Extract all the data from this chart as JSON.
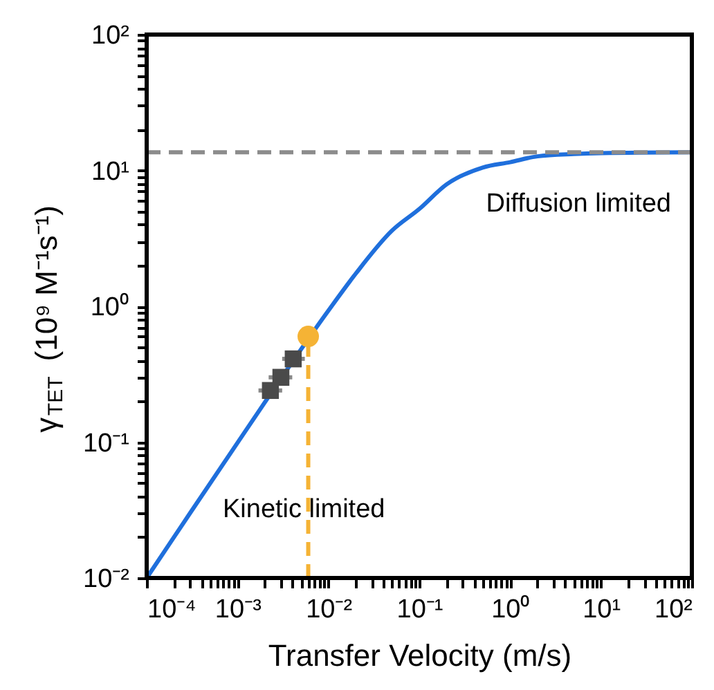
{
  "chart_data": {
    "type": "line",
    "xlabel": "Transfer Velocity (m/s)",
    "ylabel": "γ$_{TET}$ (10⁹ M⁻¹s⁻¹)",
    "log": "xy",
    "grid": false,
    "xlim": [
      0.0001,
      100
    ],
    "ylim": [
      0.01,
      100
    ],
    "xticks": [
      {
        "value": 0.0001,
        "label": "10⁻⁴"
      },
      {
        "value": 0.0002,
        "label": null
      },
      {
        "value": 0.0003,
        "label": null
      },
      {
        "value": 0.0004,
        "label": null
      },
      {
        "value": 0.0005,
        "label": null
      },
      {
        "value": 0.0006,
        "label": null
      },
      {
        "value": 0.0007,
        "label": null
      },
      {
        "value": 0.0008,
        "label": null
      },
      {
        "value": 0.0009,
        "label": null
      },
      {
        "value": 0.001,
        "label": "10⁻³"
      },
      {
        "value": 0.002,
        "label": null
      },
      {
        "value": 0.003,
        "label": null
      },
      {
        "value": 0.004,
        "label": null
      },
      {
        "value": 0.005,
        "label": null
      },
      {
        "value": 0.006,
        "label": null
      },
      {
        "value": 0.007,
        "label": null
      },
      {
        "value": 0.008,
        "label": null
      },
      {
        "value": 0.009,
        "label": null
      },
      {
        "value": 0.01,
        "label": "10⁻²"
      },
      {
        "value": 0.02,
        "label": null
      },
      {
        "value": 0.03,
        "label": null
      },
      {
        "value": 0.04,
        "label": null
      },
      {
        "value": 0.05,
        "label": null
      },
      {
        "value": 0.06,
        "label": null
      },
      {
        "value": 0.07,
        "label": null
      },
      {
        "value": 0.08,
        "label": null
      },
      {
        "value": 0.09,
        "label": null
      },
      {
        "value": 0.1,
        "label": "10⁻¹"
      },
      {
        "value": 0.2,
        "label": null
      },
      {
        "value": 0.3,
        "label": null
      },
      {
        "value": 0.4,
        "label": null
      },
      {
        "value": 0.5,
        "label": null
      },
      {
        "value": 0.6,
        "label": null
      },
      {
        "value": 0.7,
        "label": null
      },
      {
        "value": 0.8,
        "label": null
      },
      {
        "value": 0.9,
        "label": null
      },
      {
        "value": 1,
        "label": "10⁰"
      },
      {
        "value": 2,
        "label": null
      },
      {
        "value": 3,
        "label": null
      },
      {
        "value": 4,
        "label": null
      },
      {
        "value": 5,
        "label": null
      },
      {
        "value": 6,
        "label": null
      },
      {
        "value": 7,
        "label": null
      },
      {
        "value": 8,
        "label": null
      },
      {
        "value": 9,
        "label": null
      },
      {
        "value": 10,
        "label": "10¹"
      },
      {
        "value": 20,
        "label": null
      },
      {
        "value": 30,
        "label": null
      },
      {
        "value": 40,
        "label": null
      },
      {
        "value": 50,
        "label": null
      },
      {
        "value": 60,
        "label": null
      },
      {
        "value": 70,
        "label": null
      },
      {
        "value": 80,
        "label": null
      },
      {
        "value": 90,
        "label": null
      },
      {
        "value": 100,
        "label": "10²"
      }
    ],
    "yticks": [
      {
        "value": 0.01,
        "label": "10⁻²"
      },
      {
        "value": 0.02,
        "label": null
      },
      {
        "value": 0.03,
        "label": null
      },
      {
        "value": 0.04,
        "label": null
      },
      {
        "value": 0.05,
        "label": null
      },
      {
        "value": 0.06,
        "label": null
      },
      {
        "value": 0.07,
        "label": null
      },
      {
        "value": 0.08,
        "label": null
      },
      {
        "value": 0.09,
        "label": null
      },
      {
        "value": 0.1,
        "label": "10⁻¹"
      },
      {
        "value": 0.2,
        "label": null
      },
      {
        "value": 0.3,
        "label": null
      },
      {
        "value": 0.4,
        "label": null
      },
      {
        "value": 0.5,
        "label": null
      },
      {
        "value": 0.6,
        "label": null
      },
      {
        "value": 0.7,
        "label": null
      },
      {
        "value": 0.8,
        "label": null
      },
      {
        "value": 0.9,
        "label": null
      },
      {
        "value": 1,
        "label": "10⁰"
      },
      {
        "value": 2,
        "label": null
      },
      {
        "value": 3,
        "label": null
      },
      {
        "value": 4,
        "label": null
      },
      {
        "value": 5,
        "label": null
      },
      {
        "value": 6,
        "label": null
      },
      {
        "value": 7,
        "label": null
      },
      {
        "value": 8,
        "label": null
      },
      {
        "value": 9,
        "label": null
      },
      {
        "value": 10,
        "label": "10¹"
      },
      {
        "value": 20,
        "label": null
      },
      {
        "value": 30,
        "label": null
      },
      {
        "value": 40,
        "label": null
      },
      {
        "value": 50,
        "label": null
      },
      {
        "value": 60,
        "label": null
      },
      {
        "value": 70,
        "label": null
      },
      {
        "value": 80,
        "label": null
      },
      {
        "value": 90,
        "label": null
      },
      {
        "value": 100,
        "label": "10²"
      }
    ],
    "series": [
      {
        "type": "line",
        "color": "#1f6fdc",
        "line_style": "solid",
        "marker": "none",
        "x": [
          0.0001,
          0.0003,
          0.001,
          0.01,
          0.02,
          0.05,
          0.1,
          0.2,
          0.5,
          1,
          2,
          5,
          10,
          100
        ],
        "values": [
          0.01,
          0.03,
          0.099,
          0.93,
          1.74,
          3.6,
          5.2,
          7.9,
          10.5,
          11.5,
          12.7,
          13.2,
          13.4,
          13.6
        ]
      },
      {
        "type": "line",
        "color": "#f5b335",
        "line_style": "dashed",
        "marker": "none",
        "x": [
          0.006,
          0.006
        ],
        "values": [
          0.01,
          0.6
        ]
      },
      {
        "type": "scatter",
        "color": "#4a4a4a",
        "marker": "square",
        "x": [
          0.0023,
          0.003,
          0.0041
        ],
        "values": [
          0.24,
          0.3,
          0.41
        ],
        "xerrors": [
          [
            0.0017,
            0.0031
          ],
          [
            0.0022,
            0.004
          ],
          [
            0.0031,
            0.0055
          ]
        ]
      },
      {
        "type": "scatter",
        "color": "#f5b335",
        "marker": "circle",
        "x": [
          0.006
        ],
        "values": [
          0.6
        ]
      }
    ],
    "ref_lines": [
      {
        "axis": "y",
        "value": 13.6,
        "color": "#8c8c8c",
        "line_style": "dashed"
      }
    ],
    "annotations": [
      "Diffusion limited",
      "Kinetic limited"
    ]
  }
}
